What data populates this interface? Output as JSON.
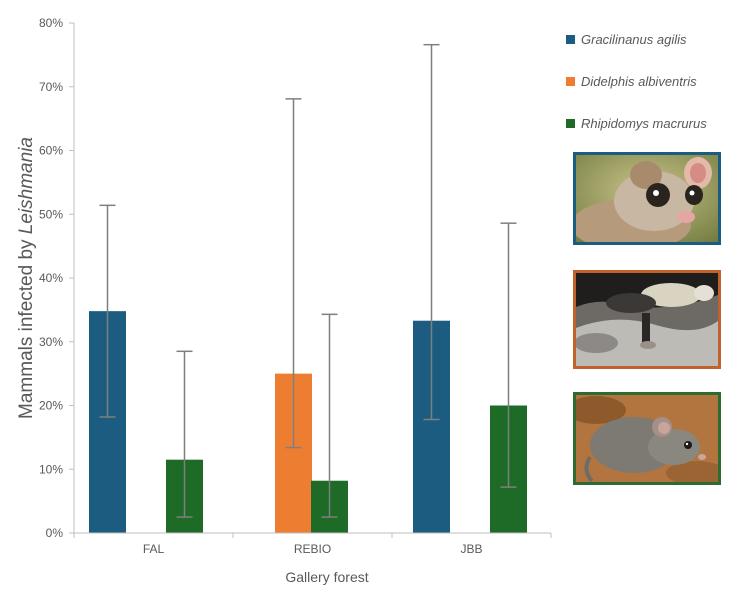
{
  "chart_data": {
    "type": "bar",
    "title": "",
    "xlabel": "Gallery forest",
    "ylabel_prefix": "Mammals infected by ",
    "ylabel_italic": "Leishmania",
    "categories": [
      "FAL",
      "REBIO",
      "JBB"
    ],
    "ylim": [
      0,
      80
    ],
    "yticks": [
      "0%",
      "10%",
      "20%",
      "30%",
      "40%",
      "50%",
      "60%",
      "70%",
      "80%"
    ],
    "grid": false,
    "legend_position": "right",
    "series": [
      {
        "name": "Gracilinanus agilis",
        "color": "#1b5c80",
        "values": [
          34.8,
          null,
          33.3
        ],
        "err_low": [
          18.2,
          null,
          17.8
        ],
        "err_high": [
          51.4,
          null,
          76.6
        ]
      },
      {
        "name": "Didelphis albiventris",
        "color": "#ed7d31",
        "values": [
          null,
          25.0,
          null
        ],
        "err_low": [
          null,
          13.4,
          null
        ],
        "err_high": [
          null,
          68.1,
          null
        ]
      },
      {
        "name": "Rhipidomys macrurus",
        "color": "#1d6b26",
        "values": [
          11.5,
          8.2,
          20.0
        ],
        "err_low": [
          2.5,
          2.5,
          7.2
        ],
        "err_high": [
          28.5,
          34.3,
          48.6
        ]
      }
    ]
  },
  "legend": {
    "items": [
      {
        "label": "Gracilinanus agilis",
        "color": "#1b5c80"
      },
      {
        "label": "Didelphis albiventris",
        "color": "#ed7d31"
      },
      {
        "label": "Rhipidomys macrurus",
        "color": "#1d6b26"
      }
    ]
  },
  "photos": [
    {
      "name": "gracilinanus-agilis-photo",
      "border": "#1b5c80"
    },
    {
      "name": "didelphis-albiventris-photo",
      "border": "#c0622a"
    },
    {
      "name": "rhipidomys-macrurus-photo",
      "border": "#2e6b2e"
    }
  ]
}
